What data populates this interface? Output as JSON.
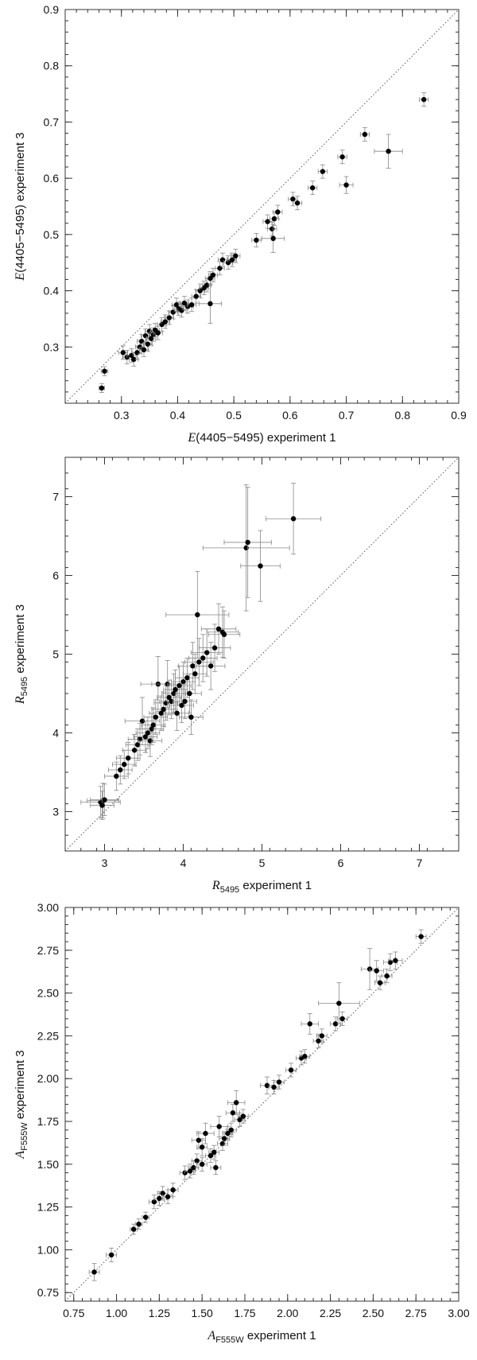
{
  "chart_data": [
    {
      "id": "panel-1",
      "type": "scatter",
      "xlabel": {
        "pre": "E",
        "sub": "",
        "post": "(4405−5495) experiment 1"
      },
      "ylabel": {
        "pre": "E",
        "sub": "",
        "post": "(4405−5495) experiment 3"
      },
      "xlim": [
        0.2,
        0.9
      ],
      "ylim": [
        0.2,
        0.9
      ],
      "xticks": [
        0.3,
        0.4,
        0.5,
        0.6,
        0.7,
        0.8,
        0.9
      ],
      "yticks": [
        0.3,
        0.4,
        0.5,
        0.6,
        0.7,
        0.8,
        0.9
      ],
      "minor_step": 0.02,
      "tick_decimals": 1,
      "diagonal": true,
      "points": [
        {
          "x": 0.265,
          "y": 0.227,
          "ex": 0.005,
          "ey": 0.008
        },
        {
          "x": 0.27,
          "y": 0.257,
          "ex": 0.006,
          "ey": 0.008
        },
        {
          "x": 0.303,
          "y": 0.29,
          "ex": 0.008,
          "ey": 0.012
        },
        {
          "x": 0.31,
          "y": 0.282,
          "ex": 0.008,
          "ey": 0.012
        },
        {
          "x": 0.318,
          "y": 0.285,
          "ex": 0.008,
          "ey": 0.012
        },
        {
          "x": 0.322,
          "y": 0.278,
          "ex": 0.008,
          "ey": 0.012
        },
        {
          "x": 0.328,
          "y": 0.29,
          "ex": 0.008,
          "ey": 0.012
        },
        {
          "x": 0.333,
          "y": 0.3,
          "ex": 0.008,
          "ey": 0.012
        },
        {
          "x": 0.336,
          "y": 0.31,
          "ex": 0.008,
          "ey": 0.012
        },
        {
          "x": 0.34,
          "y": 0.295,
          "ex": 0.008,
          "ey": 0.012
        },
        {
          "x": 0.343,
          "y": 0.32,
          "ex": 0.008,
          "ey": 0.012
        },
        {
          "x": 0.347,
          "y": 0.305,
          "ex": 0.008,
          "ey": 0.012
        },
        {
          "x": 0.35,
          "y": 0.328,
          "ex": 0.008,
          "ey": 0.012
        },
        {
          "x": 0.353,
          "y": 0.315,
          "ex": 0.008,
          "ey": 0.012
        },
        {
          "x": 0.357,
          "y": 0.322,
          "ex": 0.008,
          "ey": 0.012
        },
        {
          "x": 0.36,
          "y": 0.33,
          "ex": 0.008,
          "ey": 0.012
        },
        {
          "x": 0.365,
          "y": 0.325,
          "ex": 0.008,
          "ey": 0.012
        },
        {
          "x": 0.372,
          "y": 0.34,
          "ex": 0.008,
          "ey": 0.012
        },
        {
          "x": 0.378,
          "y": 0.345,
          "ex": 0.008,
          "ey": 0.012
        },
        {
          "x": 0.385,
          "y": 0.352,
          "ex": 0.008,
          "ey": 0.012
        },
        {
          "x": 0.392,
          "y": 0.362,
          "ex": 0.008,
          "ey": 0.012
        },
        {
          "x": 0.398,
          "y": 0.375,
          "ex": 0.008,
          "ey": 0.012
        },
        {
          "x": 0.402,
          "y": 0.368,
          "ex": 0.008,
          "ey": 0.012
        },
        {
          "x": 0.407,
          "y": 0.365,
          "ex": 0.008,
          "ey": 0.012
        },
        {
          "x": 0.412,
          "y": 0.378,
          "ex": 0.008,
          "ey": 0.012
        },
        {
          "x": 0.418,
          "y": 0.372,
          "ex": 0.01,
          "ey": 0.012
        },
        {
          "x": 0.425,
          "y": 0.375,
          "ex": 0.008,
          "ey": 0.012
        },
        {
          "x": 0.433,
          "y": 0.39,
          "ex": 0.008,
          "ey": 0.012
        },
        {
          "x": 0.44,
          "y": 0.4,
          "ex": 0.008,
          "ey": 0.012
        },
        {
          "x": 0.447,
          "y": 0.405,
          "ex": 0.008,
          "ey": 0.012
        },
        {
          "x": 0.452,
          "y": 0.41,
          "ex": 0.008,
          "ey": 0.012
        },
        {
          "x": 0.458,
          "y": 0.422,
          "ex": 0.008,
          "ey": 0.012
        },
        {
          "x": 0.463,
          "y": 0.428,
          "ex": 0.008,
          "ey": 0.012
        },
        {
          "x": 0.458,
          "y": 0.377,
          "ex": 0.02,
          "ey": 0.035
        },
        {
          "x": 0.475,
          "y": 0.44,
          "ex": 0.008,
          "ey": 0.012
        },
        {
          "x": 0.48,
          "y": 0.455,
          "ex": 0.008,
          "ey": 0.012
        },
        {
          "x": 0.49,
          "y": 0.45,
          "ex": 0.008,
          "ey": 0.012
        },
        {
          "x": 0.497,
          "y": 0.455,
          "ex": 0.008,
          "ey": 0.012
        },
        {
          "x": 0.503,
          "y": 0.462,
          "ex": 0.008,
          "ey": 0.012
        },
        {
          "x": 0.54,
          "y": 0.49,
          "ex": 0.008,
          "ey": 0.012
        },
        {
          "x": 0.56,
          "y": 0.523,
          "ex": 0.008,
          "ey": 0.012
        },
        {
          "x": 0.568,
          "y": 0.51,
          "ex": 0.008,
          "ey": 0.012
        },
        {
          "x": 0.57,
          "y": 0.493,
          "ex": 0.02,
          "ey": 0.025
        },
        {
          "x": 0.572,
          "y": 0.528,
          "ex": 0.008,
          "ey": 0.012
        },
        {
          "x": 0.578,
          "y": 0.54,
          "ex": 0.008,
          "ey": 0.012
        },
        {
          "x": 0.605,
          "y": 0.563,
          "ex": 0.008,
          "ey": 0.012
        },
        {
          "x": 0.613,
          "y": 0.556,
          "ex": 0.008,
          "ey": 0.012
        },
        {
          "x": 0.64,
          "y": 0.583,
          "ex": 0.008,
          "ey": 0.012
        },
        {
          "x": 0.658,
          "y": 0.612,
          "ex": 0.008,
          "ey": 0.012
        },
        {
          "x": 0.693,
          "y": 0.638,
          "ex": 0.008,
          "ey": 0.012
        },
        {
          "x": 0.7,
          "y": 0.588,
          "ex": 0.012,
          "ey": 0.015
        },
        {
          "x": 0.733,
          "y": 0.678,
          "ex": 0.008,
          "ey": 0.012
        },
        {
          "x": 0.775,
          "y": 0.648,
          "ex": 0.025,
          "ey": 0.03
        },
        {
          "x": 0.838,
          "y": 0.74,
          "ex": 0.008,
          "ey": 0.012
        }
      ]
    },
    {
      "id": "panel-2",
      "type": "scatter",
      "xlabel": {
        "pre": "R",
        "sub": "5495",
        "post": " experiment 1"
      },
      "ylabel": {
        "pre": "R",
        "sub": "5495",
        "post": " experiment 3"
      },
      "xlim": [
        2.5,
        7.5
      ],
      "ylim": [
        2.5,
        7.5
      ],
      "xticks": [
        3,
        4,
        5,
        6,
        7
      ],
      "yticks": [
        3,
        4,
        5,
        6,
        7
      ],
      "minor_step": 0.2,
      "tick_decimals": 0,
      "diagonal": true,
      "points": [
        {
          "x": 2.95,
          "y": 3.12,
          "ex": 0.25,
          "ey": 0.2
        },
        {
          "x": 2.98,
          "y": 3.14,
          "ex": 0.2,
          "ey": 0.22
        },
        {
          "x": 3.0,
          "y": 3.15,
          "ex": 0.18,
          "ey": 0.2
        },
        {
          "x": 2.97,
          "y": 3.08,
          "ex": 0.15,
          "ey": 0.18
        },
        {
          "x": 3.15,
          "y": 3.45,
          "ex": 0.15,
          "ey": 0.18
        },
        {
          "x": 3.2,
          "y": 3.53,
          "ex": 0.15,
          "ey": 0.18
        },
        {
          "x": 3.25,
          "y": 3.6,
          "ex": 0.15,
          "ey": 0.18
        },
        {
          "x": 3.3,
          "y": 3.68,
          "ex": 0.15,
          "ey": 0.2
        },
        {
          "x": 3.38,
          "y": 3.78,
          "ex": 0.15,
          "ey": 0.2
        },
        {
          "x": 3.42,
          "y": 3.85,
          "ex": 0.15,
          "ey": 0.2
        },
        {
          "x": 3.45,
          "y": 3.92,
          "ex": 0.15,
          "ey": 0.2
        },
        {
          "x": 3.48,
          "y": 4.15,
          "ex": 0.22,
          "ey": 0.3
        },
        {
          "x": 3.52,
          "y": 3.95,
          "ex": 0.15,
          "ey": 0.2
        },
        {
          "x": 3.55,
          "y": 4.0,
          "ex": 0.15,
          "ey": 0.2
        },
        {
          "x": 3.58,
          "y": 3.9,
          "ex": 0.15,
          "ey": 0.2
        },
        {
          "x": 3.6,
          "y": 4.05,
          "ex": 0.15,
          "ey": 0.2
        },
        {
          "x": 3.62,
          "y": 4.1,
          "ex": 0.15,
          "ey": 0.22
        },
        {
          "x": 3.65,
          "y": 4.2,
          "ex": 0.15,
          "ey": 0.22
        },
        {
          "x": 3.68,
          "y": 4.62,
          "ex": 0.22,
          "ey": 0.35
        },
        {
          "x": 3.72,
          "y": 4.25,
          "ex": 0.15,
          "ey": 0.22
        },
        {
          "x": 3.75,
          "y": 4.3,
          "ex": 0.15,
          "ey": 0.22
        },
        {
          "x": 3.78,
          "y": 4.38,
          "ex": 0.15,
          "ey": 0.22
        },
        {
          "x": 3.8,
          "y": 4.62,
          "ex": 0.2,
          "ey": 0.3
        },
        {
          "x": 3.82,
          "y": 4.45,
          "ex": 0.15,
          "ey": 0.22
        },
        {
          "x": 3.85,
          "y": 4.4,
          "ex": 0.15,
          "ey": 0.22
        },
        {
          "x": 3.88,
          "y": 4.5,
          "ex": 0.15,
          "ey": 0.25
        },
        {
          "x": 3.9,
          "y": 4.55,
          "ex": 0.15,
          "ey": 0.25
        },
        {
          "x": 3.92,
          "y": 4.25,
          "ex": 0.15,
          "ey": 0.22
        },
        {
          "x": 3.95,
          "y": 4.6,
          "ex": 0.15,
          "ey": 0.25
        },
        {
          "x": 3.98,
          "y": 4.35,
          "ex": 0.15,
          "ey": 0.22
        },
        {
          "x": 4.0,
          "y": 4.65,
          "ex": 0.15,
          "ey": 0.25
        },
        {
          "x": 4.02,
          "y": 4.4,
          "ex": 0.15,
          "ey": 0.22
        },
        {
          "x": 4.05,
          "y": 4.7,
          "ex": 0.15,
          "ey": 0.25
        },
        {
          "x": 4.08,
          "y": 4.5,
          "ex": 0.15,
          "ey": 0.25
        },
        {
          "x": 4.1,
          "y": 4.2,
          "ex": 0.15,
          "ey": 0.22
        },
        {
          "x": 4.12,
          "y": 4.85,
          "ex": 0.18,
          "ey": 0.3
        },
        {
          "x": 4.15,
          "y": 4.75,
          "ex": 0.15,
          "ey": 0.25
        },
        {
          "x": 4.18,
          "y": 5.5,
          "ex": 0.4,
          "ey": 0.55
        },
        {
          "x": 4.2,
          "y": 4.9,
          "ex": 0.18,
          "ey": 0.3
        },
        {
          "x": 4.25,
          "y": 4.95,
          "ex": 0.18,
          "ey": 0.3
        },
        {
          "x": 4.3,
          "y": 5.02,
          "ex": 0.2,
          "ey": 0.3
        },
        {
          "x": 4.35,
          "y": 4.85,
          "ex": 0.18,
          "ey": 0.3
        },
        {
          "x": 4.4,
          "y": 5.08,
          "ex": 0.2,
          "ey": 0.3
        },
        {
          "x": 4.45,
          "y": 5.32,
          "ex": 0.22,
          "ey": 0.32
        },
        {
          "x": 4.5,
          "y": 5.28,
          "ex": 0.2,
          "ey": 0.32
        },
        {
          "x": 4.52,
          "y": 5.25,
          "ex": 0.2,
          "ey": 0.3
        },
        {
          "x": 4.8,
          "y": 6.35,
          "ex": 0.55,
          "ey": 0.8
        },
        {
          "x": 4.82,
          "y": 6.42,
          "ex": 0.3,
          "ey": 0.7
        },
        {
          "x": 4.98,
          "y": 6.12,
          "ex": 0.25,
          "ey": 0.45
        },
        {
          "x": 5.4,
          "y": 6.72,
          "ex": 0.35,
          "ey": 0.45
        }
      ]
    },
    {
      "id": "panel-3",
      "type": "scatter",
      "xlabel": {
        "pre": "A",
        "sub": "F555W",
        "post": " experiment 1"
      },
      "ylabel": {
        "pre": "A",
        "sub": "F555W",
        "post": " experiment 3"
      },
      "xlim": [
        0.7,
        3.0
      ],
      "ylim": [
        0.7,
        3.0
      ],
      "xticks": [
        0.75,
        1.0,
        1.25,
        1.5,
        1.75,
        2.0,
        2.25,
        2.5,
        2.75,
        3.0
      ],
      "yticks": [
        0.75,
        1.0,
        1.25,
        1.5,
        1.75,
        2.0,
        2.25,
        2.5,
        2.75,
        3.0
      ],
      "minor_step": 0.05,
      "tick_decimals": 2,
      "diagonal": true,
      "points": [
        {
          "x": 0.87,
          "y": 0.87,
          "ex": 0.03,
          "ey": 0.05
        },
        {
          "x": 0.97,
          "y": 0.97,
          "ex": 0.03,
          "ey": 0.04
        },
        {
          "x": 1.1,
          "y": 1.12,
          "ex": 0.02,
          "ey": 0.03
        },
        {
          "x": 1.13,
          "y": 1.15,
          "ex": 0.02,
          "ey": 0.03
        },
        {
          "x": 1.17,
          "y": 1.19,
          "ex": 0.02,
          "ey": 0.03
        },
        {
          "x": 1.22,
          "y": 1.28,
          "ex": 0.03,
          "ey": 0.04
        },
        {
          "x": 1.25,
          "y": 1.3,
          "ex": 0.03,
          "ey": 0.04
        },
        {
          "x": 1.27,
          "y": 1.33,
          "ex": 0.03,
          "ey": 0.04
        },
        {
          "x": 1.3,
          "y": 1.31,
          "ex": 0.03,
          "ey": 0.04
        },
        {
          "x": 1.33,
          "y": 1.35,
          "ex": 0.03,
          "ey": 0.04
        },
        {
          "x": 1.4,
          "y": 1.45,
          "ex": 0.03,
          "ey": 0.04
        },
        {
          "x": 1.43,
          "y": 1.46,
          "ex": 0.03,
          "ey": 0.04
        },
        {
          "x": 1.45,
          "y": 1.48,
          "ex": 0.03,
          "ey": 0.04
        },
        {
          "x": 1.47,
          "y": 1.52,
          "ex": 0.03,
          "ey": 0.04
        },
        {
          "x": 1.5,
          "y": 1.5,
          "ex": 0.03,
          "ey": 0.04
        },
        {
          "x": 1.48,
          "y": 1.64,
          "ex": 0.04,
          "ey": 0.05
        },
        {
          "x": 1.5,
          "y": 1.6,
          "ex": 0.03,
          "ey": 0.05
        },
        {
          "x": 1.52,
          "y": 1.68,
          "ex": 0.05,
          "ey": 0.06
        },
        {
          "x": 1.55,
          "y": 1.55,
          "ex": 0.03,
          "ey": 0.04
        },
        {
          "x": 1.57,
          "y": 1.57,
          "ex": 0.03,
          "ey": 0.04
        },
        {
          "x": 1.58,
          "y": 1.48,
          "ex": 0.03,
          "ey": 0.04
        },
        {
          "x": 1.6,
          "y": 1.72,
          "ex": 0.05,
          "ey": 0.06
        },
        {
          "x": 1.62,
          "y": 1.62,
          "ex": 0.03,
          "ey": 0.04
        },
        {
          "x": 1.63,
          "y": 1.65,
          "ex": 0.03,
          "ey": 0.04
        },
        {
          "x": 1.65,
          "y": 1.68,
          "ex": 0.03,
          "ey": 0.04
        },
        {
          "x": 1.67,
          "y": 1.7,
          "ex": 0.03,
          "ey": 0.04
        },
        {
          "x": 1.68,
          "y": 1.8,
          "ex": 0.04,
          "ey": 0.05
        },
        {
          "x": 1.7,
          "y": 1.86,
          "ex": 0.05,
          "ey": 0.07
        },
        {
          "x": 1.72,
          "y": 1.76,
          "ex": 0.03,
          "ey": 0.04
        },
        {
          "x": 1.74,
          "y": 1.78,
          "ex": 0.03,
          "ey": 0.04
        },
        {
          "x": 1.88,
          "y": 1.96,
          "ex": 0.04,
          "ey": 0.05
        },
        {
          "x": 1.92,
          "y": 1.95,
          "ex": 0.03,
          "ey": 0.04
        },
        {
          "x": 1.95,
          "y": 1.98,
          "ex": 0.03,
          "ey": 0.04
        },
        {
          "x": 2.02,
          "y": 2.05,
          "ex": 0.03,
          "ey": 0.04
        },
        {
          "x": 2.08,
          "y": 2.12,
          "ex": 0.03,
          "ey": 0.04
        },
        {
          "x": 2.1,
          "y": 2.13,
          "ex": 0.03,
          "ey": 0.04
        },
        {
          "x": 2.13,
          "y": 2.32,
          "ex": 0.05,
          "ey": 0.06
        },
        {
          "x": 2.18,
          "y": 2.22,
          "ex": 0.03,
          "ey": 0.04
        },
        {
          "x": 2.2,
          "y": 2.25,
          "ex": 0.03,
          "ey": 0.04
        },
        {
          "x": 2.28,
          "y": 2.32,
          "ex": 0.03,
          "ey": 0.04
        },
        {
          "x": 2.3,
          "y": 2.44,
          "ex": 0.12,
          "ey": 0.12
        },
        {
          "x": 2.32,
          "y": 2.35,
          "ex": 0.03,
          "ey": 0.04
        },
        {
          "x": 2.48,
          "y": 2.64,
          "ex": 0.05,
          "ey": 0.12
        },
        {
          "x": 2.52,
          "y": 2.63,
          "ex": 0.04,
          "ey": 0.06
        },
        {
          "x": 2.54,
          "y": 2.56,
          "ex": 0.03,
          "ey": 0.04
        },
        {
          "x": 2.58,
          "y": 2.6,
          "ex": 0.03,
          "ey": 0.04
        },
        {
          "x": 2.6,
          "y": 2.68,
          "ex": 0.04,
          "ey": 0.05
        },
        {
          "x": 2.63,
          "y": 2.69,
          "ex": 0.04,
          "ey": 0.05
        },
        {
          "x": 2.78,
          "y": 2.83,
          "ex": 0.03,
          "ey": 0.04
        }
      ]
    }
  ]
}
